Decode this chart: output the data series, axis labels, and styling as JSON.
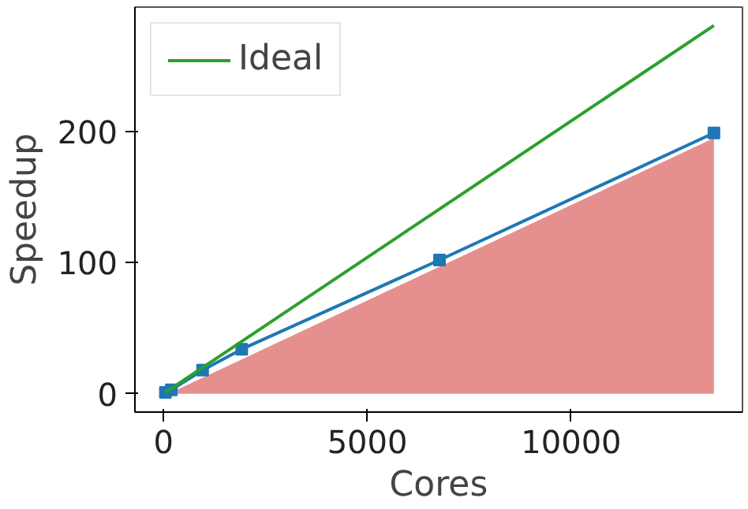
{
  "chart_data": {
    "type": "line",
    "xlabel": "Cores",
    "ylabel": "Speedup",
    "xlim": [
      -700,
      14200
    ],
    "ylim": [
      -14,
      295
    ],
    "xticks": [
      0,
      5000,
      10000
    ],
    "yticks": [
      0,
      100,
      200
    ],
    "grid": false,
    "legend": "top left",
    "series": [
      {
        "type": "area",
        "color": "#e68f8f",
        "x": [
          192,
          13500
        ],
        "values": [
          1,
          195
        ]
      },
      {
        "color": "#1f77b4",
        "marker": "square",
        "x": [
          48,
          192,
          960,
          1920,
          6770,
          13500
        ],
        "values": [
          1,
          3,
          18,
          34,
          102,
          199
        ]
      },
      {
        "name": "Ideal",
        "color": "#2ca02c",
        "marker": "none",
        "x": [
          48,
          13500
        ],
        "values": [
          1,
          281
        ]
      }
    ]
  }
}
